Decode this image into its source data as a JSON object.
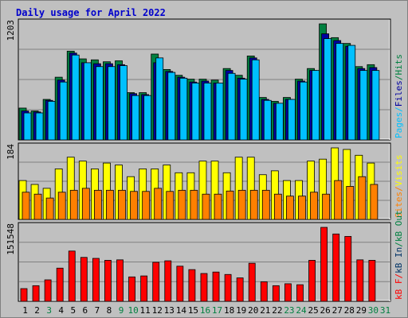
{
  "colors": {
    "hits": "#008040",
    "files": "#0000a0",
    "pages": "#00c0ff",
    "visits": "#ffff00",
    "sites": "#ff8000",
    "kbf": "#ff0000",
    "kbin": "#003366",
    "kbout": "#008040",
    "weekday": "#000000",
    "weekend": "#008040"
  },
  "chart_data": {
    "type": "bar",
    "title": "Daily usage for April 2022",
    "categories": [
      "1",
      "2",
      "3",
      "4",
      "5",
      "6",
      "7",
      "8",
      "9",
      "10",
      "11",
      "12",
      "13",
      "14",
      "15",
      "16",
      "17",
      "18",
      "19",
      "20",
      "21",
      "22",
      "23",
      "24",
      "25",
      "26",
      "27",
      "28",
      "29",
      "30",
      "31"
    ],
    "weekend_days": [
      3,
      9,
      10,
      16,
      17,
      23,
      24,
      30,
      31
    ],
    "panels": [
      {
        "ymax_label": "1203",
        "ylim": [
          0,
          1203
        ],
        "side_labels": [
          "Pages",
          "/",
          "Files",
          "/",
          "Hits"
        ],
        "series": [
          {
            "name": "Hits",
            "values": [
              330,
              300,
              420,
              650,
              920,
              840,
              830,
              810,
              820,
              490,
              490,
              890,
              730,
              670,
              630,
              630,
              620,
              740,
              670,
              870,
              440,
              400,
              440,
              630,
              740,
              1203,
              1060,
              1000,
              760,
              780,
              0
            ]
          },
          {
            "name": "Files",
            "values": [
              300,
              290,
              410,
              620,
              900,
              800,
              790,
              790,
              780,
              480,
              470,
              800,
              710,
              650,
              600,
              610,
              590,
              720,
              640,
              850,
              420,
              380,
              420,
              610,
              720,
              1100,
              1030,
              970,
              740,
              750,
              0
            ]
          },
          {
            "name": "Pages",
            "values": [
              280,
              280,
              400,
              600,
              880,
              800,
              760,
              760,
              770,
              460,
              460,
              850,
              700,
              640,
              590,
              590,
              590,
              690,
              630,
              830,
              410,
              380,
              420,
              600,
              720,
              1050,
              1000,
              980,
              720,
              720,
              0
            ]
          }
        ]
      },
      {
        "ymax_label": "184",
        "ylim": [
          0,
          184
        ],
        "side_labels": [
          "Sites",
          "/",
          "Visits"
        ],
        "series": [
          {
            "name": "Visits",
            "values": [
              100,
              90,
              80,
              130,
              160,
              150,
              130,
              145,
              140,
              110,
              130,
              130,
              140,
              120,
              120,
              150,
              150,
              120,
              160,
              160,
              115,
              125,
              100,
              100,
              150,
              155,
              184,
              180,
              165,
              145,
              0
            ]
          },
          {
            "name": "Sites",
            "values": [
              70,
              65,
              55,
              70,
              75,
              80,
              75,
              75,
              75,
              72,
              72,
              80,
              72,
              75,
              75,
              65,
              65,
              73,
              75,
              75,
              75,
              65,
              60,
              60,
              70,
              65,
              100,
              85,
              110,
              90,
              0
            ]
          }
        ]
      },
      {
        "ymax_label": "151548",
        "ylim": [
          0,
          151548
        ],
        "side_labels": [
          "kB F",
          "/",
          "kB In",
          "/",
          "kB Out"
        ],
        "series": [
          {
            "name": "kB F",
            "values": [
              26000,
              32000,
              44000,
              68000,
              103000,
              90000,
              88000,
              84000,
              85000,
              50000,
              52000,
              80000,
              83000,
              72000,
              65000,
              57000,
              60000,
              55000,
              48000,
              78000,
              40000,
              32000,
              36000,
              34000,
              84000,
              151548,
              138000,
              133000,
              85000,
              84000,
              0
            ]
          }
        ]
      }
    ]
  }
}
